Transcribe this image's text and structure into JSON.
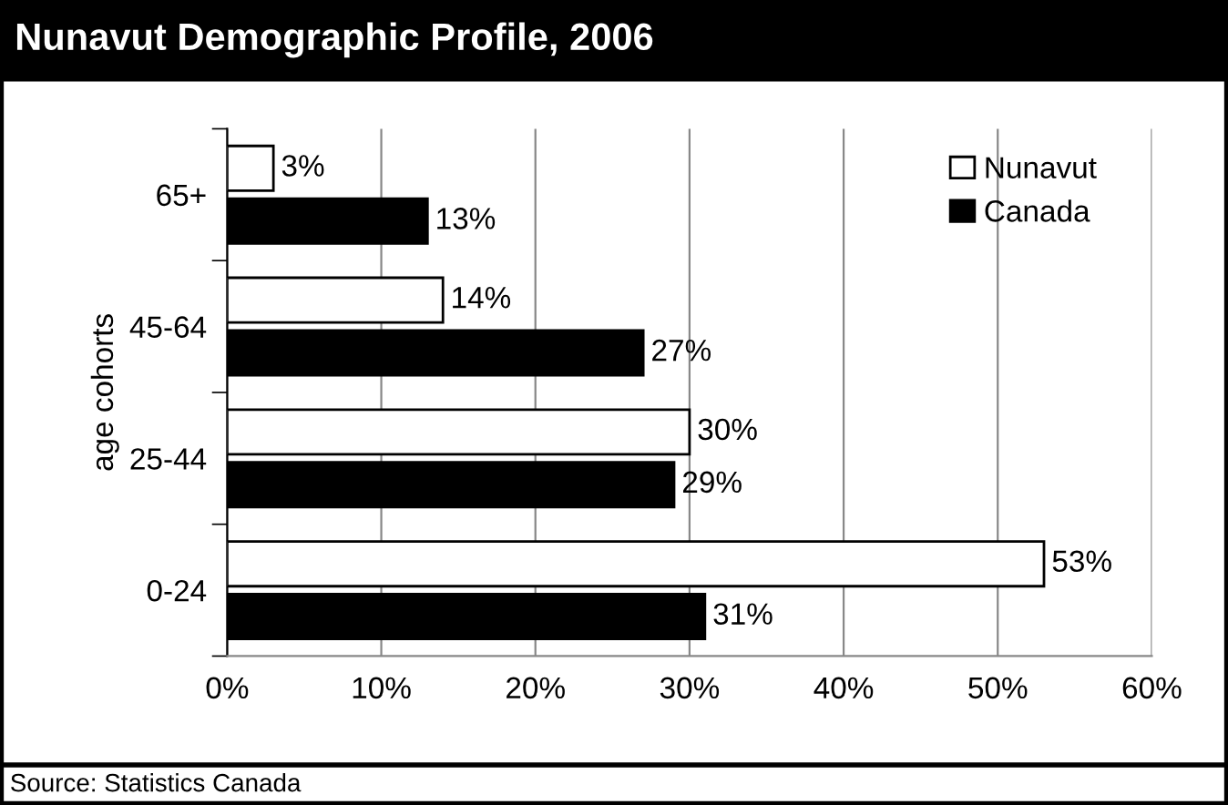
{
  "chart_data": {
    "type": "bar",
    "orientation": "horizontal",
    "title": "Nunavut Demographic Profile, 2006",
    "ylabel": "age cohorts",
    "categories": [
      "65+",
      "45-64",
      "25-44",
      "0-24"
    ],
    "series": [
      {
        "name": "Nunavut",
        "color": "#ffffff",
        "values": [
          3,
          14,
          30,
          53
        ],
        "value_labels": [
          "3%",
          "14%",
          "30%",
          "53%"
        ]
      },
      {
        "name": "Canada",
        "color": "#000000",
        "values": [
          13,
          27,
          29,
          31
        ],
        "value_labels": [
          "13%",
          "27%",
          "29%",
          "31%"
        ]
      }
    ],
    "xlim": [
      0,
      60
    ],
    "xticks": [
      {
        "value": 0,
        "label": "0%"
      },
      {
        "value": 10,
        "label": "10%"
      },
      {
        "value": 20,
        "label": "20%"
      },
      {
        "value": 30,
        "label": "30%"
      },
      {
        "value": 40,
        "label": "40%"
      },
      {
        "value": 50,
        "label": "50%"
      },
      {
        "value": 60,
        "label": "60%"
      }
    ],
    "grid": "x",
    "legend": "top right",
    "annotations": [
      "Source: Statistics Canada"
    ]
  }
}
